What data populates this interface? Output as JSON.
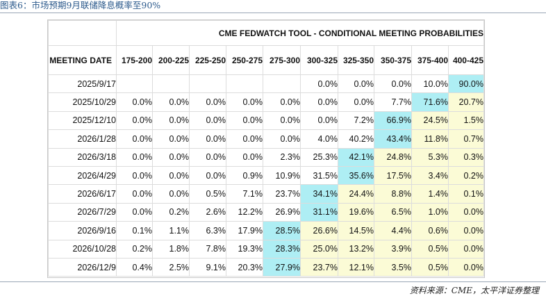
{
  "caption": "图表6：市场预期9月联储降息概率至90%",
  "source": "资料来源：CME，太平洋证券整理",
  "chart_data": {
    "type": "table",
    "title": "CME FEDWATCH TOOL - CONDITIONAL MEETING PROBABILITIES",
    "row_header": "MEETING DATE",
    "columns": [
      "175-200",
      "200-225",
      "225-250",
      "250-275",
      "275-300",
      "300-325",
      "325-350",
      "350-375",
      "375-400",
      "400-425"
    ],
    "highlight_colors": {
      "max": "#aeeef4",
      "near": "#fbfbd6"
    },
    "rows": [
      {
        "date": "2025/9/17",
        "values": [
          "",
          "",
          "",
          "",
          "",
          "0.0%",
          "0.0%",
          "0.0%",
          "10.0%",
          "90.0%"
        ],
        "max": 9,
        "near": []
      },
      {
        "date": "2025/10/29",
        "values": [
          "0.0%",
          "0.0%",
          "0.0%",
          "0.0%",
          "0.0%",
          "0.0%",
          "0.0%",
          "7.7%",
          "71.6%",
          "20.7%"
        ],
        "max": 8,
        "near": [
          9
        ]
      },
      {
        "date": "2025/12/10",
        "values": [
          "0.0%",
          "0.0%",
          "0.0%",
          "0.0%",
          "0.0%",
          "0.0%",
          "7.2%",
          "66.9%",
          "24.5%",
          "1.5%"
        ],
        "max": 7,
        "near": [
          8,
          9
        ]
      },
      {
        "date": "2026/1/28",
        "values": [
          "0.0%",
          "0.0%",
          "0.0%",
          "0.0%",
          "0.0%",
          "4.0%",
          "40.2%",
          "43.4%",
          "11.8%",
          "0.7%"
        ],
        "max": 7,
        "near": [
          8,
          9
        ]
      },
      {
        "date": "2026/3/18",
        "values": [
          "0.0%",
          "0.0%",
          "0.0%",
          "0.0%",
          "2.3%",
          "25.3%",
          "42.1%",
          "24.8%",
          "5.3%",
          "0.3%"
        ],
        "max": 6,
        "near": [
          7,
          8,
          9
        ]
      },
      {
        "date": "2026/4/29",
        "values": [
          "0.0%",
          "0.0%",
          "0.0%",
          "0.9%",
          "10.9%",
          "31.5%",
          "35.6%",
          "17.5%",
          "3.4%",
          "0.2%"
        ],
        "max": 6,
        "near": [
          7,
          8,
          9
        ]
      },
      {
        "date": "2026/6/17",
        "values": [
          "0.0%",
          "0.0%",
          "0.5%",
          "7.1%",
          "23.7%",
          "34.1%",
          "24.4%",
          "8.8%",
          "1.4%",
          "0.1%"
        ],
        "max": 5,
        "near": [
          6,
          7,
          8,
          9
        ]
      },
      {
        "date": "2026/7/29",
        "values": [
          "0.0%",
          "0.2%",
          "2.6%",
          "12.2%",
          "26.9%",
          "31.1%",
          "19.6%",
          "6.5%",
          "1.0%",
          "0.0%"
        ],
        "max": 5,
        "near": [
          6,
          7,
          8,
          9
        ]
      },
      {
        "date": "2026/9/16",
        "values": [
          "0.1%",
          "1.1%",
          "6.3%",
          "17.9%",
          "28.5%",
          "26.6%",
          "14.5%",
          "4.4%",
          "0.6%",
          "0.0%"
        ],
        "max": 4,
        "near": [
          5,
          6,
          7,
          8,
          9
        ]
      },
      {
        "date": "2026/10/28",
        "values": [
          "0.2%",
          "1.8%",
          "7.8%",
          "19.3%",
          "28.3%",
          "25.0%",
          "13.2%",
          "3.9%",
          "0.5%",
          "0.0%"
        ],
        "max": 4,
        "near": [
          5,
          6,
          7,
          8,
          9
        ]
      },
      {
        "date": "2026/12/9",
        "values": [
          "0.4%",
          "2.5%",
          "9.1%",
          "20.3%",
          "27.9%",
          "23.7%",
          "12.1%",
          "3.5%",
          "0.5%",
          "0.0%"
        ],
        "max": 4,
        "near": [
          5,
          6,
          7,
          8,
          9
        ]
      }
    ]
  }
}
